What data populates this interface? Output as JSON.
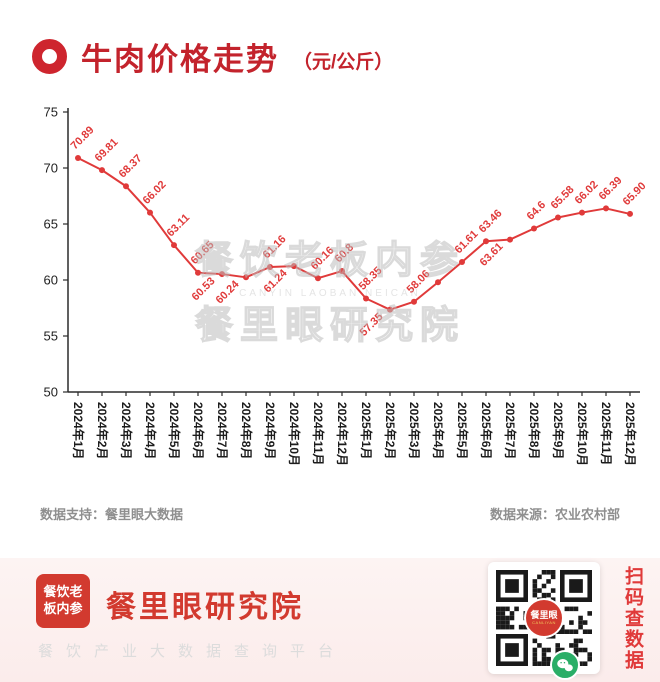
{
  "header": {
    "title": "牛肉价格走势",
    "unit": "（元/公斤）"
  },
  "chart_data": {
    "type": "line",
    "title": "牛肉价格走势",
    "unit": "元/公斤",
    "x": [
      "2024年1月",
      "2024年2月",
      "2024年3月",
      "2024年4月",
      "2024年5月",
      "2024年6月",
      "2024年7月",
      "2024年8月",
      "2024年9月",
      "2024年10月",
      "2024年11月",
      "2024年12月",
      "2025年1月",
      "2025年2月",
      "2025年3月",
      "2025年4月",
      "2025年5月",
      "2025年6月",
      "2025年7月",
      "2025年8月",
      "2025年9月",
      "2025年10月",
      "2025年11月",
      "2025年12月"
    ],
    "values": [
      70.89,
      69.81,
      68.37,
      66.02,
      63.11,
      60.65,
      60.53,
      60.24,
      61.16,
      61.24,
      60.16,
      60.8,
      58.35,
      57.35,
      58.06,
      59.8,
      61.61,
      63.46,
      63.61,
      64.6,
      65.58,
      66.02,
      66.39,
      65.9
    ],
    "point_labels": [
      "70.89",
      "69.81",
      "68.37",
      "66.02",
      "63.11",
      "60.65",
      "60.53",
      "60.24",
      "61.16",
      "61.24",
      "60.16",
      "60.8",
      "58.35",
      "57.35",
      "58.06",
      "",
      "61.61",
      "63.46",
      "63.61",
      "64.6",
      "65.58",
      "66.02",
      "66.39",
      "65.90"
    ],
    "labels_below_indices": [
      6,
      7,
      9,
      13,
      18
    ],
    "ylim": [
      50,
      75
    ],
    "yticks": [
      50,
      55,
      60,
      65,
      70,
      75
    ],
    "grid": false,
    "legend": "none",
    "x_label_rotation": 90,
    "point_label_rotation": -45,
    "line_color": "#e03a3a",
    "axis_color": "#2b2b2b"
  },
  "watermark": {
    "line1": "餐饮老板内参",
    "line2": "CANYIN LAOBAN NEICAN",
    "line3": "餐里眼研究院"
  },
  "footnotes": {
    "left": "数据支持：餐里眼大数据",
    "right": "数据来源：农业农村部"
  },
  "footer": {
    "logo_text": "餐饮老板内参",
    "brand": "餐里眼研究院",
    "tagline": "餐饮产业大数据查询平台",
    "qr_center": "餐里眼",
    "qr_sub": "CANLIYAN",
    "scan_text": "扫码查数据"
  }
}
